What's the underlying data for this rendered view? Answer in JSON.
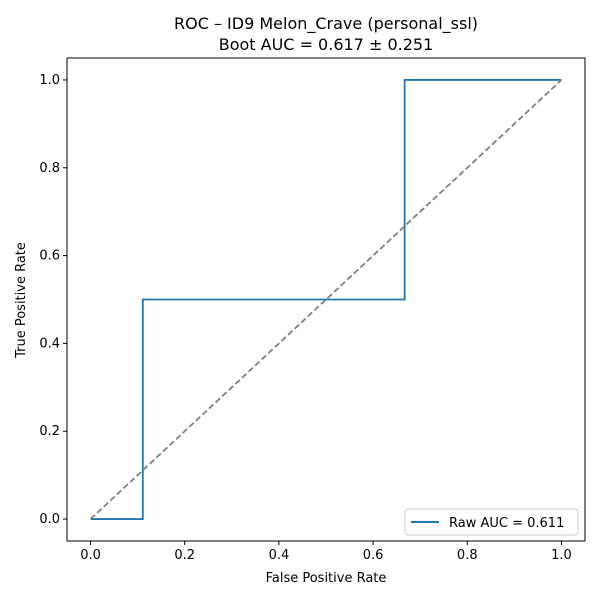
{
  "chart_data": {
    "type": "line",
    "title": "ROC – ID9 Melon_Crave (personal_ssl)",
    "subtitle": "Boot AUC = 0.617 ± 0.251",
    "xlabel": "False Positive Rate",
    "ylabel": "True Positive Rate",
    "xlim": [
      -0.05,
      1.05
    ],
    "ylim": [
      -0.05,
      1.05
    ],
    "xticks": [
      0.0,
      0.2,
      0.4,
      0.6,
      0.8,
      1.0
    ],
    "yticks": [
      0.0,
      0.2,
      0.4,
      0.6,
      0.8,
      1.0
    ],
    "xtick_labels": [
      "0.0",
      "0.2",
      "0.4",
      "0.6",
      "0.8",
      "1.0"
    ],
    "ytick_labels": [
      "0.0",
      "0.2",
      "0.4",
      "0.6",
      "0.8",
      "1.0"
    ],
    "grid": false,
    "legend_position": "lower-right",
    "series": [
      {
        "name": "Raw AUC = 0.611",
        "color": "#1f77b4",
        "style": "solid",
        "points": [
          [
            0.0,
            0.0
          ],
          [
            0.111,
            0.0
          ],
          [
            0.111,
            0.5
          ],
          [
            0.667,
            0.5
          ],
          [
            0.667,
            1.0
          ],
          [
            1.0,
            1.0
          ]
        ]
      },
      {
        "color": "#808080",
        "style": "dashed",
        "points": [
          [
            0.0,
            0.0
          ],
          [
            1.0,
            1.0
          ]
        ]
      }
    ]
  }
}
